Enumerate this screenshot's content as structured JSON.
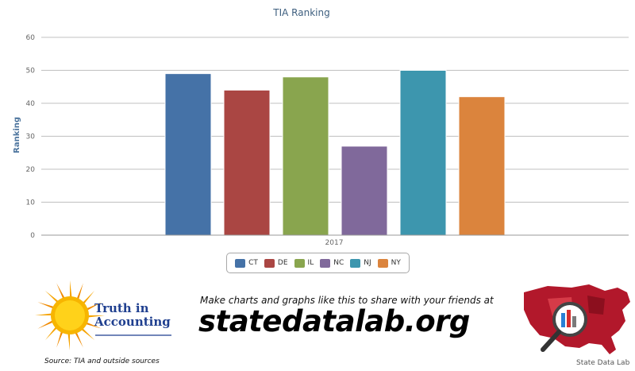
{
  "chart_data": {
    "type": "bar",
    "title": "TIA Ranking",
    "xlabel": "",
    "ylabel": "Ranking",
    "categories": [
      "2017"
    ],
    "series": [
      {
        "name": "CT",
        "values": [
          49
        ],
        "color": "#4572a7"
      },
      {
        "name": "DE",
        "values": [
          44
        ],
        "color": "#aa4643"
      },
      {
        "name": "IL",
        "values": [
          48
        ],
        "color": "#89a54e"
      },
      {
        "name": "NC",
        "values": [
          27
        ],
        "color": "#80699b"
      },
      {
        "name": "NJ",
        "values": [
          50
        ],
        "color": "#3d96ae"
      },
      {
        "name": "NY",
        "values": [
          42
        ],
        "color": "#db843d"
      }
    ],
    "ylim": [
      0,
      60
    ],
    "yticks": [
      "0",
      "10",
      "20",
      "30",
      "40",
      "50",
      "60"
    ],
    "grid": true,
    "legend": "bottom-center"
  },
  "footer": {
    "tia_logo_line1": "Truth in",
    "tia_logo_line2": "Accounting",
    "source": "Source: TIA and outside sources",
    "promo_line": "Make charts and graphs like this to share with your friends at",
    "promo_url": "statedatalab.org",
    "sdl_label": "State Data Lab"
  },
  "icons": [
    "sun-icon",
    "usa-map-icon",
    "magnifier-icon"
  ]
}
